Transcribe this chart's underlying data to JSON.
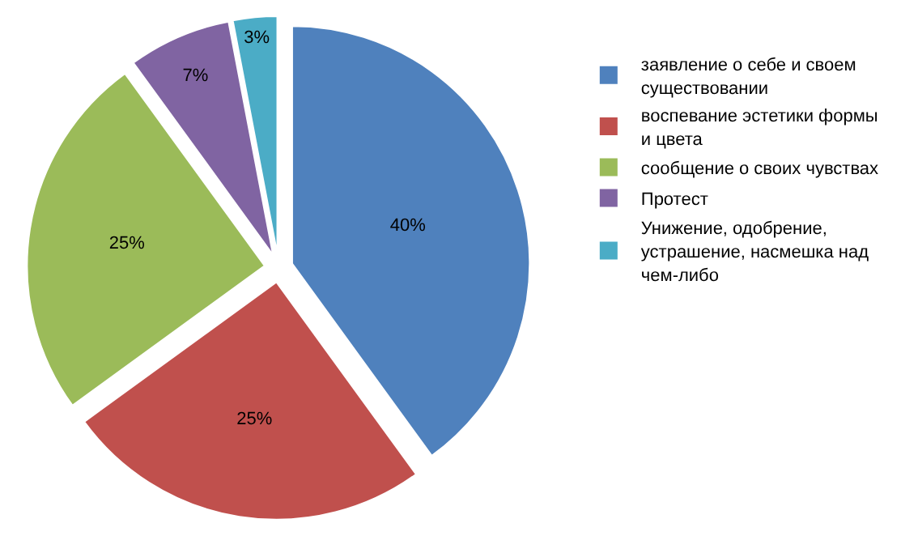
{
  "chart_data": {
    "type": "pie",
    "categories": [
      "заявление о себе и своем существовании",
      "воспевание эстетики формы и цвета",
      "сообщение о своих чувствах",
      "Протест",
      "Унижение, одобрение, устрашение, насмешка над чем-либо"
    ],
    "values": [
      40,
      25,
      25,
      7,
      3
    ],
    "value_labels": [
      "40%",
      "25%",
      "25%",
      "7%",
      "3%"
    ],
    "colors": [
      "#4f81bd",
      "#c0504d",
      "#9bbb59",
      "#8064a2",
      "#4bacc6"
    ],
    "legend": "right"
  }
}
